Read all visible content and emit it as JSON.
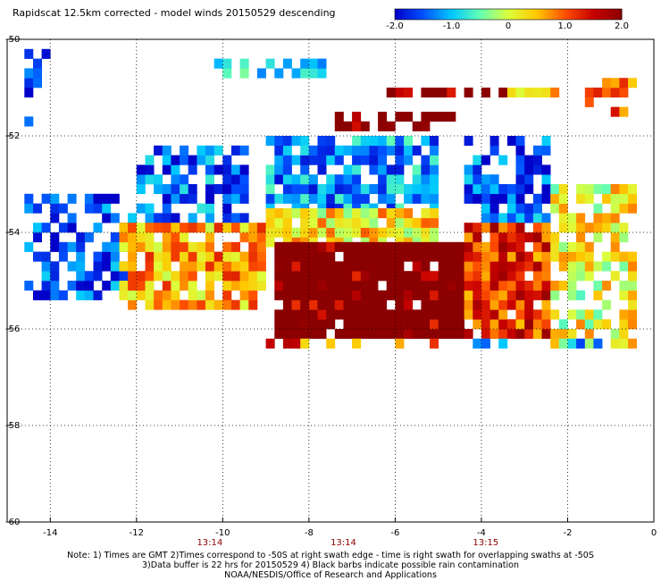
{
  "title": "Rapidscat 12.5km corrected - model winds 20150529 descending",
  "colorbar": {
    "ticks": [
      "-2.0",
      "-1.0",
      "0",
      "1.0",
      "2.0"
    ],
    "tick_values": [
      -2.0,
      -1.0,
      0,
      1.0,
      2.0
    ],
    "range": [
      -2.0,
      2.0
    ],
    "colors": [
      "#0000c8",
      "#0050ff",
      "#00c8ff",
      "#64ffb4",
      "#dcff3c",
      "#ffc800",
      "#ff5000",
      "#c80000",
      "#8b0000"
    ]
  },
  "chart_data": {
    "type": "heatmap",
    "title": "Rapidscat 12.5km corrected - model winds 20150529 descending",
    "xlim": [
      -15,
      0
    ],
    "ylim": [
      -60,
      -50
    ],
    "x_ticks": [
      -14,
      -12,
      -10,
      -8,
      -6,
      -4,
      -2,
      0
    ],
    "y_ticks": [
      -50,
      -52,
      -54,
      -56,
      -58,
      -60
    ],
    "x_tick_labels": [
      "-14",
      "-12",
      "-10",
      "-8",
      "-6",
      "-4",
      "-2",
      "0"
    ],
    "y_tick_labels": [
      "-50",
      "-52",
      "-54",
      "-56",
      "-58",
      "-60"
    ],
    "grid": true,
    "grid_style": "dotted",
    "time_labels": [
      {
        "x": -10.3,
        "label": "13:14"
      },
      {
        "x": -7.2,
        "label": "13:14"
      },
      {
        "x": -3.9,
        "label": "13:15"
      }
    ],
    "value_range": [
      -2.0,
      2.0
    ],
    "cell_size_deg": 0.2,
    "regions": [
      {
        "x": [
          -14.6,
          -12.0
        ],
        "y": [
          -53.2,
          -55.4
        ],
        "value": -1.6,
        "density": 0.6
      },
      {
        "x": [
          -12.0,
          -9.5
        ],
        "y": [
          -52.2,
          -53.8
        ],
        "value": -1.4,
        "density": 0.7
      },
      {
        "x": [
          -12.4,
          -9.0
        ],
        "y": [
          -53.8,
          -55.6
        ],
        "value": 0.6,
        "density": 0.85
      },
      {
        "x": [
          -9.0,
          -5.0
        ],
        "y": [
          -52.0,
          -53.6
        ],
        "value": -1.2,
        "density": 0.8
      },
      {
        "x": [
          -9.0,
          -5.0
        ],
        "y": [
          -53.6,
          -54.3
        ],
        "value": 0.3,
        "density": 0.9
      },
      {
        "x": [
          -8.8,
          -4.4
        ],
        "y": [
          -54.2,
          -56.2
        ],
        "value": 2.0,
        "density": 0.95
      },
      {
        "x": [
          -4.4,
          -2.4
        ],
        "y": [
          -52.0,
          -53.8
        ],
        "value": -1.5,
        "density": 0.75
      },
      {
        "x": [
          -4.4,
          -2.4
        ],
        "y": [
          -53.8,
          -56.2
        ],
        "value": 1.2,
        "density": 0.9
      },
      {
        "x": [
          -2.4,
          -0.4
        ],
        "y": [
          -53.0,
          -56.4
        ],
        "value": 0.1,
        "density": 0.7
      },
      {
        "x": [
          -6.6,
          -3.4
        ],
        "y": [
          -51.0,
          -51.2
        ],
        "value": 2.0,
        "density": 0.6
      },
      {
        "x": [
          -3.4,
          -2.2
        ],
        "y": [
          -51.0,
          -51.2
        ],
        "value": 0.6,
        "density": 0.7
      },
      {
        "x": [
          -1.6,
          -0.4
        ],
        "y": [
          -50.8,
          -51.6
        ],
        "value": 0.8,
        "density": 0.6
      },
      {
        "x": [
          -7.6,
          -4.6
        ],
        "y": [
          -51.6,
          -51.9
        ],
        "value": 2.0,
        "density": 0.5
      },
      {
        "x": [
          -14.6,
          -14.0
        ],
        "y": [
          -50.2,
          -51.8
        ],
        "value": -1.9,
        "density": 0.4
      },
      {
        "x": [
          -10.2,
          -7.6
        ],
        "y": [
          -50.4,
          -50.8
        ],
        "value": -1.0,
        "density": 0.5
      },
      {
        "x": [
          -9.0,
          -5.0
        ],
        "y": [
          -56.2,
          -56.4
        ],
        "value": 1.0,
        "density": 0.5
      },
      {
        "x": [
          -5.0,
          -0.4
        ],
        "y": [
          -56.2,
          -56.4
        ],
        "value": -0.9,
        "density": 0.6
      }
    ]
  },
  "notes": [
    "Note: 1) Times are GMT 2)Times correspond to -50S at right swath edge - time is right swath for overlapping swaths at -50S",
    "3)Data buffer is 22 hrs for 20150529 4) Black barbs indicate possible rain contamination",
    "NOAA/NESDIS/Office of Research and Applications"
  ]
}
